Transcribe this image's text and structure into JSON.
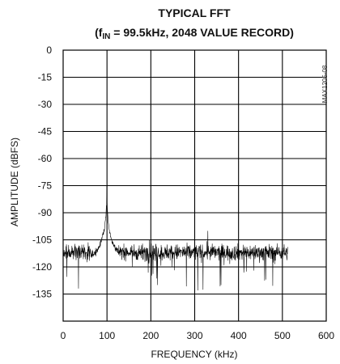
{
  "chart_data": {
    "type": "line",
    "title": "TYPICAL FFT",
    "subtitle": {
      "prefix": "(f",
      "subscript": "IN",
      "suffix": " = 99.5kHz, 2048 VALUE RECORD)"
    },
    "xlabel": "FREQUENCY (kHz)",
    "ylabel": "AMPLITUDE (dBFS)",
    "xlim": [
      0,
      600
    ],
    "ylim": [
      -150,
      0
    ],
    "x_ticks": [
      0,
      100,
      200,
      300,
      400,
      500,
      600
    ],
    "y_ticks": [
      0,
      -15,
      -30,
      -45,
      -60,
      -75,
      -90,
      -105,
      -120,
      -135
    ],
    "grid": true,
    "figure_id": "MAX1205-08",
    "series": [
      {
        "noise_floor_dbfs": -112,
        "x_end_khz": 512,
        "fundamental": {
          "x": 99.5,
          "y": -75
        },
        "spurs": [
          {
            "x": 330,
            "y": -100
          },
          {
            "x": 197,
            "y": -105
          },
          {
            "x": 215,
            "y": -130
          },
          {
            "x": 35,
            "y": -132
          },
          {
            "x": 300,
            "y": -137
          },
          {
            "x": 307,
            "y": -133
          },
          {
            "x": 360,
            "y": -130
          },
          {
            "x": 462,
            "y": -127
          }
        ]
      }
    ]
  }
}
